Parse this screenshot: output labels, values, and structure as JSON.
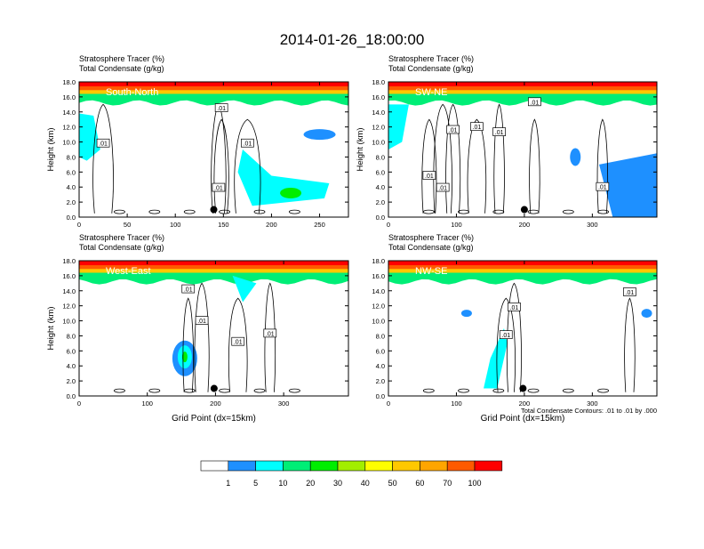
{
  "title": "2014-01-26_18:00:00",
  "chart_data": [
    {
      "type": "heatmap",
      "subtitle_1": "Stratosphere Tracer   (%)",
      "subtitle_2": "Total Condensate   (g/kg)",
      "label": "South-North",
      "ylabel": "Height (km)",
      "xlabel": "",
      "xlim": [
        0,
        280
      ],
      "ylim": [
        0,
        18
      ],
      "xticks": [
        "0",
        "50",
        "100",
        "150",
        "200",
        "250"
      ],
      "xtick_values": [
        0,
        50,
        100,
        150,
        200,
        250
      ],
      "yticks": [
        "0.0",
        "2.0",
        "4.0",
        "6.0",
        "8.0",
        "10.0",
        "12.0",
        "14.0",
        "16.0",
        "18.0"
      ],
      "contour_labels": [
        {
          "text": ".01",
          "x": 148,
          "y": 14.5
        },
        {
          "text": ".01",
          "x": 25,
          "y": 9.8
        },
        {
          "text": ".01",
          "x": 175,
          "y": 9.8
        },
        {
          "text": ".01",
          "x": 145,
          "y": 3.9
        }
      ],
      "marker": {
        "x": 140,
        "y": 1.0
      }
    },
    {
      "type": "heatmap",
      "subtitle_1": "Stratosphere Tracer   (%)",
      "subtitle_2": "Total Condensate   (g/kg)",
      "label": "SW-NE",
      "ylabel": "Height (km)",
      "xlabel": "",
      "xlim": [
        0,
        395
      ],
      "ylim": [
        0,
        18
      ],
      "xticks": [
        "0",
        "100",
        "200",
        "300"
      ],
      "xtick_values": [
        0,
        100,
        200,
        300
      ],
      "yticks": [
        "0.0",
        "2.0",
        "4.0",
        "6.0",
        "8.0",
        "10.0",
        "12.0",
        "14.0",
        "16.0",
        "18.0"
      ],
      "contour_labels": [
        {
          "text": ".01",
          "x": 215,
          "y": 15.3
        },
        {
          "text": ".01",
          "x": 95,
          "y": 11.6
        },
        {
          "text": ".01",
          "x": 130,
          "y": 12.0
        },
        {
          "text": ".01",
          "x": 163,
          "y": 11.3
        },
        {
          "text": ".01",
          "x": 60,
          "y": 5.5
        },
        {
          "text": ".01",
          "x": 80,
          "y": 3.9
        },
        {
          "text": ".01",
          "x": 315,
          "y": 4.0
        }
      ],
      "marker": {
        "x": 200,
        "y": 1.0
      }
    },
    {
      "type": "heatmap",
      "subtitle_1": "Stratosphere Tracer   (%)",
      "subtitle_2": "Total Condensate   (g/kg)",
      "label": "West-East",
      "ylabel": "Height (km)",
      "xlabel": "Grid Point (dx=15km)",
      "xlim": [
        0,
        395
      ],
      "ylim": [
        0,
        18
      ],
      "xticks": [
        "0",
        "100",
        "200",
        "300"
      ],
      "xtick_values": [
        0,
        100,
        200,
        300
      ],
      "yticks": [
        "0.0",
        "2.0",
        "4.0",
        "6.0",
        "8.0",
        "10.0",
        "12.0",
        "14.0",
        "16.0",
        "18.0"
      ],
      "contour_labels": [
        {
          "text": ".01",
          "x": 160,
          "y": 14.2
        },
        {
          "text": ".01",
          "x": 180,
          "y": 10.0
        },
        {
          "text": ".01",
          "x": 233,
          "y": 7.2
        },
        {
          "text": ".01",
          "x": 280,
          "y": 8.3
        }
      ],
      "marker": {
        "x": 198,
        "y": 1.0
      }
    },
    {
      "type": "heatmap",
      "subtitle_1": "Stratosphere Tracer   (%)",
      "subtitle_2": "Total Condensate   (g/kg)",
      "label": "NW-SE",
      "ylabel": "",
      "xlabel": "Grid Point (dx=15km)",
      "xlim": [
        0,
        395
      ],
      "ylim": [
        0,
        18
      ],
      "xticks": [
        "0",
        "100",
        "200",
        "300"
      ],
      "xtick_values": [
        0,
        100,
        200,
        300
      ],
      "yticks": [
        "0.0",
        "2.0",
        "4.0",
        "6.0",
        "8.0",
        "10.0",
        "12.0",
        "14.0",
        "16.0",
        "18.0"
      ],
      "contour_labels": [
        {
          "text": ".01",
          "x": 355,
          "y": 13.8
        },
        {
          "text": ".01",
          "x": 185,
          "y": 11.8
        },
        {
          "text": ".01",
          "x": 173,
          "y": 8.1
        }
      ],
      "marker": {
        "x": 198,
        "y": 1.0
      },
      "footnote": "Total Condensate Contours: .01 to .01 by .000"
    }
  ],
  "colorbar": {
    "labels": [
      "1",
      "5",
      "10",
      "20",
      "30",
      "40",
      "50",
      "60",
      "70",
      "100"
    ],
    "colors": [
      "#ffffff",
      "#1e90ff",
      "#00ffff",
      "#00ee76",
      "#00ee00",
      "#a2ee00",
      "#ffff00",
      "#ffc800",
      "#ffa500",
      "#ff5a00",
      "#ff0000"
    ]
  }
}
